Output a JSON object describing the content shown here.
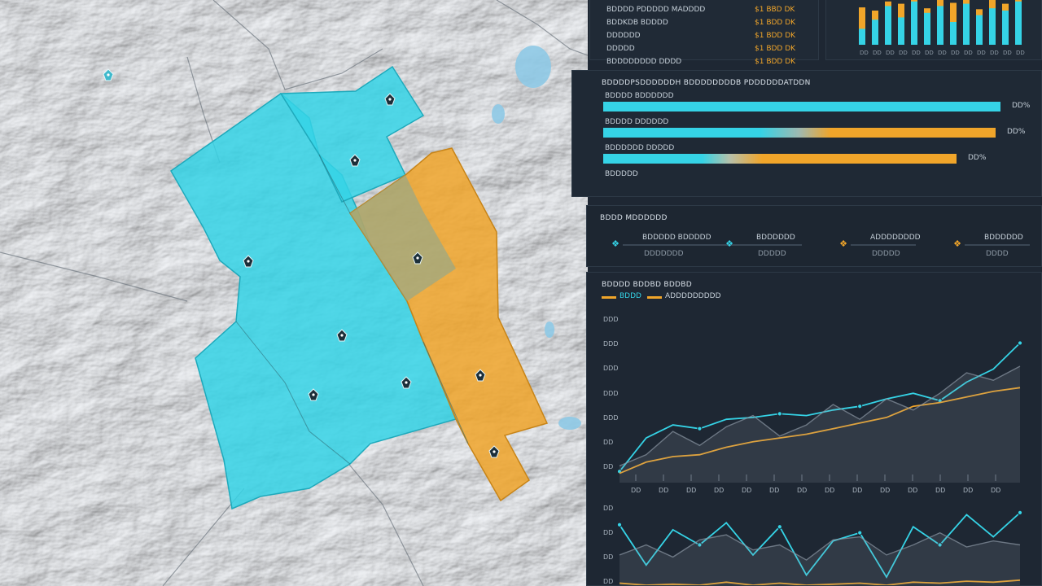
{
  "colors": {
    "accent_cyan": "#35d3e6",
    "accent_orange": "#f0a52a",
    "panel_bg": "#1e2733",
    "map_bg": "#d9dee2"
  },
  "map": {
    "zones": [
      {
        "name": "zone-cyan-main",
        "color": "#35d3e6"
      },
      {
        "name": "zone-cyan-north",
        "color": "#35d3e6"
      },
      {
        "name": "zone-orange-east",
        "color": "#f0a52a"
      }
    ],
    "markers": [
      {
        "icon": "site-marker-icon"
      },
      {
        "icon": "site-marker-icon"
      },
      {
        "icon": "site-marker-icon"
      },
      {
        "icon": "site-marker-icon"
      },
      {
        "icon": "site-marker-icon"
      },
      {
        "icon": "site-marker-icon"
      },
      {
        "icon": "site-marker-icon"
      },
      {
        "icon": "site-marker-icon"
      },
      {
        "icon": "site-marker-icon"
      },
      {
        "icon": "site-marker-icon"
      }
    ]
  },
  "top_card": {
    "rows": [
      {
        "label": "BDDDD PDDDDD MADDDD",
        "value": "$1 BBD DK"
      },
      {
        "label": "BDDKDB BDDDD",
        "value": "$1 BDD DK"
      },
      {
        "label": "DDDDDD",
        "value": "$1 BDD DK"
      },
      {
        "label": "DDDDD",
        "value": "$1 BDD DK"
      },
      {
        "label": "BDDDDDDDD DDDD",
        "value": "$1 BDD DK"
      }
    ]
  },
  "top_chart": {
    "bars": [
      {
        "cyan": 0.35,
        "orange": 0.82
      },
      {
        "cyan": 0.55,
        "orange": 0.75
      },
      {
        "cyan": 0.85,
        "orange": 0.95
      },
      {
        "cyan": 0.6,
        "orange": 0.9
      },
      {
        "cyan": 0.95,
        "orange": 1.0
      },
      {
        "cyan": 0.7,
        "orange": 0.8
      },
      {
        "cyan": 0.85,
        "orange": 1.0
      },
      {
        "cyan": 0.5,
        "orange": 0.92
      },
      {
        "cyan": 0.9,
        "orange": 1.0
      },
      {
        "cyan": 0.65,
        "orange": 0.78
      },
      {
        "cyan": 0.8,
        "orange": 1.0
      },
      {
        "cyan": 0.75,
        "orange": 0.9
      },
      {
        "cyan": 0.95,
        "orange": 1.0
      }
    ],
    "ticks": [
      "DD",
      "DD",
      "DD",
      "DD",
      "DD",
      "DD",
      "DD",
      "DD",
      "DD",
      "DD",
      "DD",
      "DD",
      "DD"
    ]
  },
  "progress_card": {
    "title": "BDDDDPSDDDDDDH BDDDDDDDDB PDDDDDDATDDN",
    "bars": [
      {
        "label": "BDDDD BDDDDDD",
        "value_text": "DD%",
        "fill": 1.0,
        "type": "cyan"
      },
      {
        "label": "BDDDD DDDDDD",
        "value_text": "DD%",
        "fill": 1.0,
        "type": "mixed"
      },
      {
        "label": "BDDDDDD DDDDD",
        "value_text": "DD%",
        "fill": 1.0,
        "type": "mixed2"
      },
      {
        "label": "BDDDDD",
        "value_text": "",
        "fill": 0,
        "type": "empty"
      }
    ]
  },
  "stats_card": {
    "title": "BDDD MDDDDDD",
    "items": [
      {
        "icon": "drone-icon",
        "color": "cyan",
        "name": "BDDDDD BDDDDD",
        "sub": "DDDDDDD"
      },
      {
        "icon": "site-icon",
        "color": "cyan",
        "name": "BDDDDDD",
        "sub": "DDDDD"
      },
      {
        "icon": "sensor-icon",
        "color": "orange",
        "name": "ADDDDDDDD",
        "sub": "DDDDD"
      },
      {
        "icon": "beacon-icon",
        "color": "orange",
        "name": "BDDDDDD",
        "sub": "DDDD"
      }
    ]
  },
  "line_chart": {
    "title": "BDDDD BDDBD BDDBD",
    "legend": [
      {
        "name": "BDDD",
        "color": "#f0a52a"
      },
      {
        "name": "ADDDDDDDDD",
        "color": "#f0a52a"
      }
    ],
    "y_ticks": [
      "DDD",
      "DDD",
      "DDD",
      "DDD",
      "DDD",
      "DD",
      "DD"
    ],
    "x_ticks": [
      "DD",
      "DD",
      "DD",
      "DD",
      "DD",
      "DD",
      "DD",
      "DD",
      "DD",
      "DD",
      "DD",
      "DD",
      "DD",
      "DD"
    ]
  },
  "chart_data": [
    {
      "type": "bar",
      "title": "",
      "categories": [
        "1",
        "2",
        "3",
        "4",
        "5",
        "6",
        "7",
        "8",
        "9",
        "10",
        "11",
        "12",
        "13"
      ],
      "series": [
        {
          "values": [
            0.35,
            0.55,
            0.85,
            0.6,
            0.95,
            0.7,
            0.85,
            0.5,
            0.9,
            0.65,
            0.8,
            0.75,
            0.95
          ]
        },
        {
          "values": [
            0.82,
            0.75,
            0.95,
            0.9,
            1.0,
            0.8,
            1.0,
            0.92,
            1.0,
            0.78,
            1.0,
            0.9,
            1.0
          ]
        }
      ],
      "ylim": [
        0,
        1
      ]
    },
    {
      "type": "line",
      "title": "",
      "x": [
        1,
        2,
        3,
        4,
        5,
        6,
        7,
        8,
        9,
        10,
        11,
        12,
        13,
        14,
        15,
        16
      ],
      "series": [
        {
          "color": "#35d3e6",
          "values": [
            12,
            48,
            62,
            58,
            68,
            70,
            74,
            72,
            78,
            82,
            90,
            96,
            88,
            108,
            122,
            150
          ]
        },
        {
          "color": "#f0a52a",
          "values": [
            10,
            22,
            28,
            30,
            38,
            44,
            48,
            52,
            58,
            64,
            70,
            82,
            86,
            92,
            98,
            102
          ]
        },
        {
          "color": "#8a96a3",
          "values": [
            18,
            30,
            55,
            40,
            60,
            72,
            50,
            62,
            84,
            68,
            90,
            78,
            96,
            118,
            110,
            125
          ]
        }
      ],
      "ylim": [
        0,
        160
      ]
    },
    {
      "type": "line",
      "title": "",
      "x": [
        1,
        2,
        3,
        4,
        5,
        6,
        7,
        8,
        9,
        10,
        11,
        12,
        13,
        14,
        15,
        16
      ],
      "series": [
        {
          "color": "#35d3e6",
          "values": [
            60,
            20,
            55,
            40,
            62,
            30,
            58,
            10,
            44,
            52,
            8,
            58,
            40,
            70,
            48,
            72
          ]
        },
        {
          "color": "#f0a52a",
          "values": [
            2,
            0,
            1,
            0,
            3,
            0,
            2,
            0,
            1,
            2,
            0,
            3,
            2,
            4,
            3,
            5
          ]
        },
        {
          "color": "#8a96a3",
          "values": [
            30,
            40,
            28,
            45,
            50,
            35,
            40,
            25,
            45,
            48,
            30,
            40,
            52,
            38,
            44,
            40
          ]
        }
      ],
      "ylim": [
        0,
        80
      ]
    }
  ]
}
